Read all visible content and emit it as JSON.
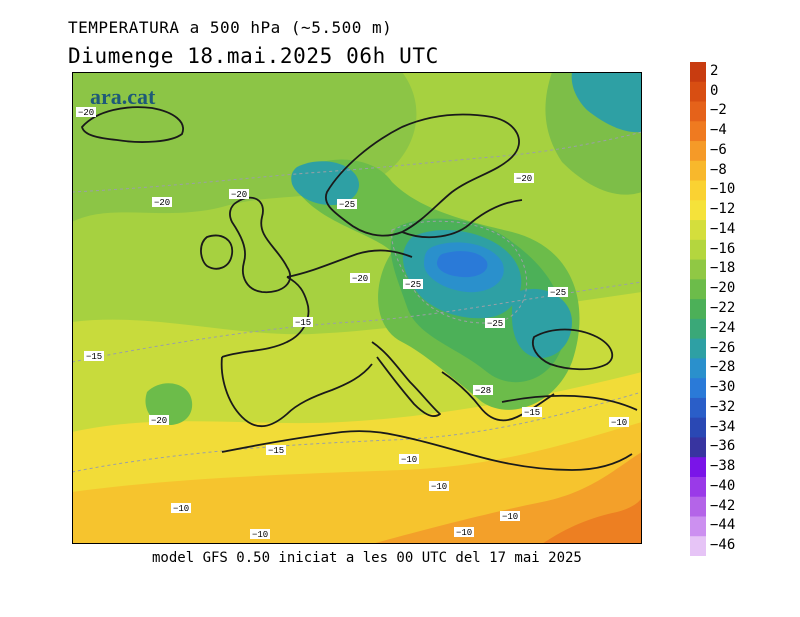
{
  "title_line1": "TEMPERATURA a 500 hPa (~5.500 m)",
  "title_line2": "Diumenge  18.mai.2025 06h UTC",
  "footer": "model GFS 0.50 iniciat a les 00 UTC del 17 mai 2025",
  "logo": "ara.cat",
  "colorbar": {
    "labels": [
      "2",
      "0",
      "−2",
      "−4",
      "−6",
      "−8",
      "−10",
      "−12",
      "−14",
      "−16",
      "−18",
      "−20",
      "−22",
      "−24",
      "−26",
      "−28",
      "−30",
      "−32",
      "−34",
      "−36",
      "−38",
      "−40",
      "−42",
      "−44",
      "−46"
    ],
    "colors": [
      "#c83c10",
      "#d84e12",
      "#e5621a",
      "#ef7a20",
      "#f59a28",
      "#f8b82c",
      "#fad232",
      "#f5e23a",
      "#d4de3c",
      "#b4d63e",
      "#90c844",
      "#6cbc4a",
      "#4cb058",
      "#3aa878",
      "#2ea0a4",
      "#2a90cc",
      "#2a7ad8",
      "#2a5ec8",
      "#2a48b4",
      "#3834a0",
      "#7a14e8",
      "#9a3ae8",
      "#b464e8",
      "#cc90f0",
      "#e6c4f6"
    ]
  },
  "contour_labels": [
    {
      "text": "−20"
    },
    {
      "text": "−20"
    },
    {
      "text": "−20"
    },
    {
      "text": "−25"
    },
    {
      "text": "−20"
    },
    {
      "text": "−25"
    },
    {
      "text": "−25"
    },
    {
      "text": "−25"
    },
    {
      "text": "−20"
    },
    {
      "text": "−15"
    },
    {
      "text": "−15"
    },
    {
      "text": "−20"
    },
    {
      "text": "−15"
    },
    {
      "text": "−28"
    },
    {
      "text": "−15"
    },
    {
      "text": "−10"
    },
    {
      "text": "−10"
    },
    {
      "text": "−10"
    },
    {
      "text": "−10"
    },
    {
      "text": "−10"
    },
    {
      "text": "−10"
    },
    {
      "text": "−10"
    }
  ]
}
